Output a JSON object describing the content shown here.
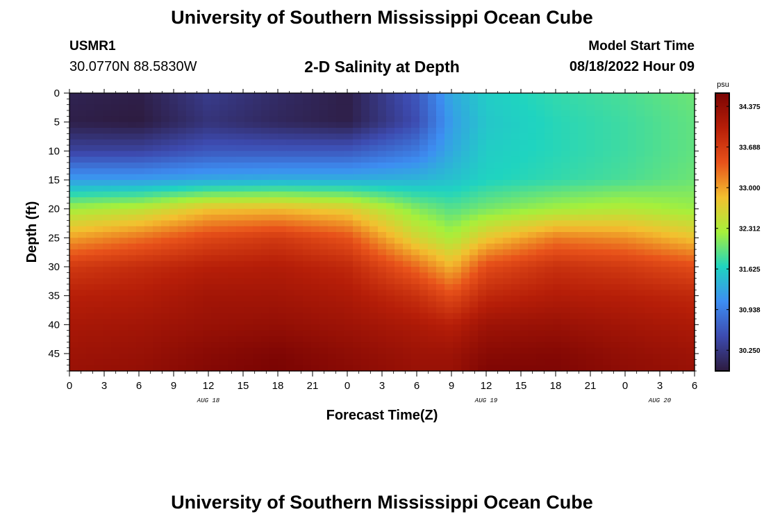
{
  "header": {
    "title": "University of Southern Mississippi Ocean Cube",
    "station_id": "USMR1",
    "coordinates": "30.0770N  88.5830W",
    "subtitle": "2-D Salinity at Depth",
    "model_start_label": "Model Start Time",
    "model_start_value": "08/18/2022 Hour 09"
  },
  "footer": {
    "title": "University of Southern Mississippi Ocean Cube"
  },
  "chart_data": {
    "type": "heatmap",
    "title": "2-D Salinity at Depth",
    "xlabel": "Forecast Time(Z)",
    "ylabel": "Depth (ft)",
    "x_units": "hours since 08/18 00Z",
    "xlim": [
      0,
      54
    ],
    "ylim": [
      0,
      48
    ],
    "y_inverted": true,
    "x_tick_labels": [
      "0",
      "3",
      "6",
      "9",
      "12",
      "15",
      "18",
      "21",
      "0",
      "3",
      "6",
      "9",
      "12",
      "15",
      "18",
      "21",
      "0",
      "3",
      "6"
    ],
    "y_tick_labels": [
      "0",
      "5",
      "10",
      "15",
      "20",
      "25",
      "30",
      "35",
      "40",
      "45"
    ],
    "date_labels": [
      "AUG 18",
      "AUG 19",
      "AUG 20"
    ],
    "colorbar": {
      "unit": "psu",
      "min": 29.9,
      "max": 34.6,
      "tick_labels": [
        "34.375",
        "33.688",
        "33.000",
        "32.312",
        "31.625",
        "30.938",
        "30.250"
      ],
      "colors": [
        "#2d1b3f",
        "#3d4bb0",
        "#3d8ef2",
        "#1fd4c0",
        "#a6f03b",
        "#f3c02f",
        "#e8521a",
        "#b61e08",
        "#7a0403"
      ]
    },
    "depths_ft": [
      0,
      5,
      10,
      15,
      20,
      25,
      30,
      35,
      40,
      45,
      48
    ],
    "times_hr": [
      0,
      6,
      12,
      18,
      24,
      30,
      33,
      36,
      42,
      48,
      54
    ],
    "values": [
      [
        30.0,
        29.95,
        30.3,
        30.1,
        29.95,
        30.6,
        31.3,
        31.6,
        31.75,
        31.85,
        32.0
      ],
      [
        29.95,
        29.9,
        30.2,
        30.05,
        29.95,
        30.5,
        31.2,
        31.55,
        31.7,
        31.8,
        31.95
      ],
      [
        30.4,
        30.4,
        30.6,
        30.6,
        30.6,
        30.9,
        31.3,
        31.6,
        31.7,
        31.8,
        31.95
      ],
      [
        31.2,
        31.2,
        31.3,
        31.35,
        31.35,
        31.4,
        31.5,
        31.65,
        31.75,
        31.85,
        32.0
      ],
      [
        32.25,
        32.4,
        32.8,
        32.85,
        32.7,
        32.1,
        31.9,
        32.05,
        32.25,
        32.35,
        32.2
      ],
      [
        33.0,
        33.25,
        33.55,
        33.7,
        33.45,
        32.6,
        32.3,
        32.75,
        33.2,
        33.1,
        32.8
      ],
      [
        33.7,
        33.85,
        34.0,
        34.05,
        33.9,
        33.3,
        32.9,
        33.5,
        33.8,
        33.7,
        33.5
      ],
      [
        34.0,
        34.05,
        34.2,
        34.2,
        34.1,
        33.8,
        33.5,
        33.9,
        34.05,
        34.0,
        33.9
      ],
      [
        34.15,
        34.2,
        34.3,
        34.35,
        34.25,
        34.1,
        34.0,
        34.25,
        34.3,
        34.2,
        34.1
      ],
      [
        34.25,
        34.3,
        34.45,
        34.55,
        34.4,
        34.25,
        34.25,
        34.45,
        34.5,
        34.35,
        34.25
      ],
      [
        34.3,
        34.35,
        34.5,
        34.6,
        34.45,
        34.3,
        34.3,
        34.55,
        34.55,
        34.4,
        34.3
      ]
    ]
  }
}
